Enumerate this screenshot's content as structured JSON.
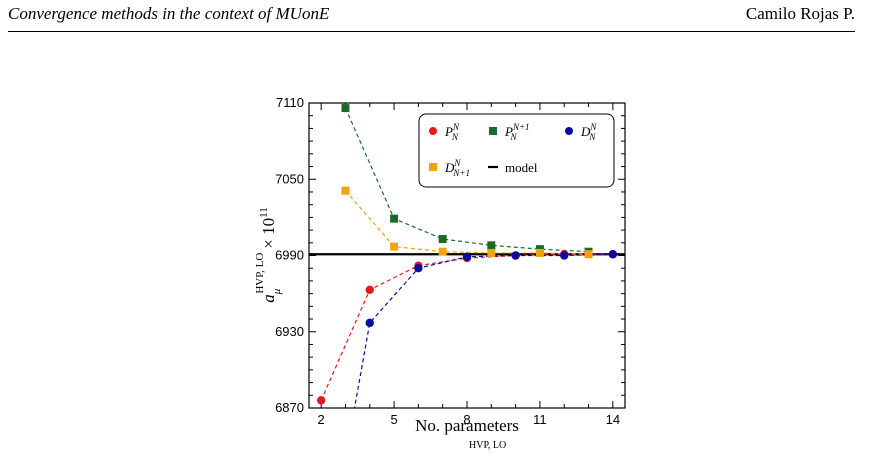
{
  "header": {
    "title": "Convergence methods in the context of MUonE",
    "author": "Camilo Rojas P."
  },
  "caption_fragment": "HVP, LO",
  "chart_data": {
    "type": "scatter",
    "xlabel": "No. parameters",
    "ylabel": "a_μ^{HVP, LO} × 10^{11}",
    "xlim": [
      1.5,
      14.5
    ],
    "ylim": [
      6870,
      7110
    ],
    "xticks": [
      2,
      5,
      8,
      11,
      14
    ],
    "yticks": [
      6870,
      6930,
      6990,
      7050,
      7110
    ],
    "grid": false,
    "legend_position": "top-right",
    "model_value": 6991,
    "series": [
      {
        "name": "P_N^N",
        "color": "#e31a1c",
        "marker": "circle",
        "x": [
          2,
          4,
          6,
          8,
          10,
          12,
          14
        ],
        "y": [
          6876,
          6963,
          6982,
          6988,
          6990,
          6991,
          6991
        ]
      },
      {
        "name": "P_N^{N+1}",
        "color": "#1a6b2a",
        "marker": "square",
        "x": [
          3,
          5,
          7,
          9,
          11,
          13
        ],
        "y": [
          7106,
          7019,
          7003,
          6998,
          6995,
          6993
        ]
      },
      {
        "name": "D_N^N",
        "color": "#0a0a9e",
        "marker": "circle",
        "x": [
          4,
          6,
          8,
          10,
          12,
          14
        ],
        "y": [
          6937,
          6980,
          6989,
          6990,
          6990,
          6991
        ]
      },
      {
        "name": "D_{N+1}^N",
        "color": "#f5a10f",
        "marker": "square",
        "x": [
          3,
          5,
          7,
          9,
          11,
          13
        ],
        "y": [
          7041,
          6997,
          6993,
          6992,
          6992,
          6991
        ]
      },
      {
        "name": "model",
        "color": "#000000",
        "marker": "line"
      }
    ]
  }
}
